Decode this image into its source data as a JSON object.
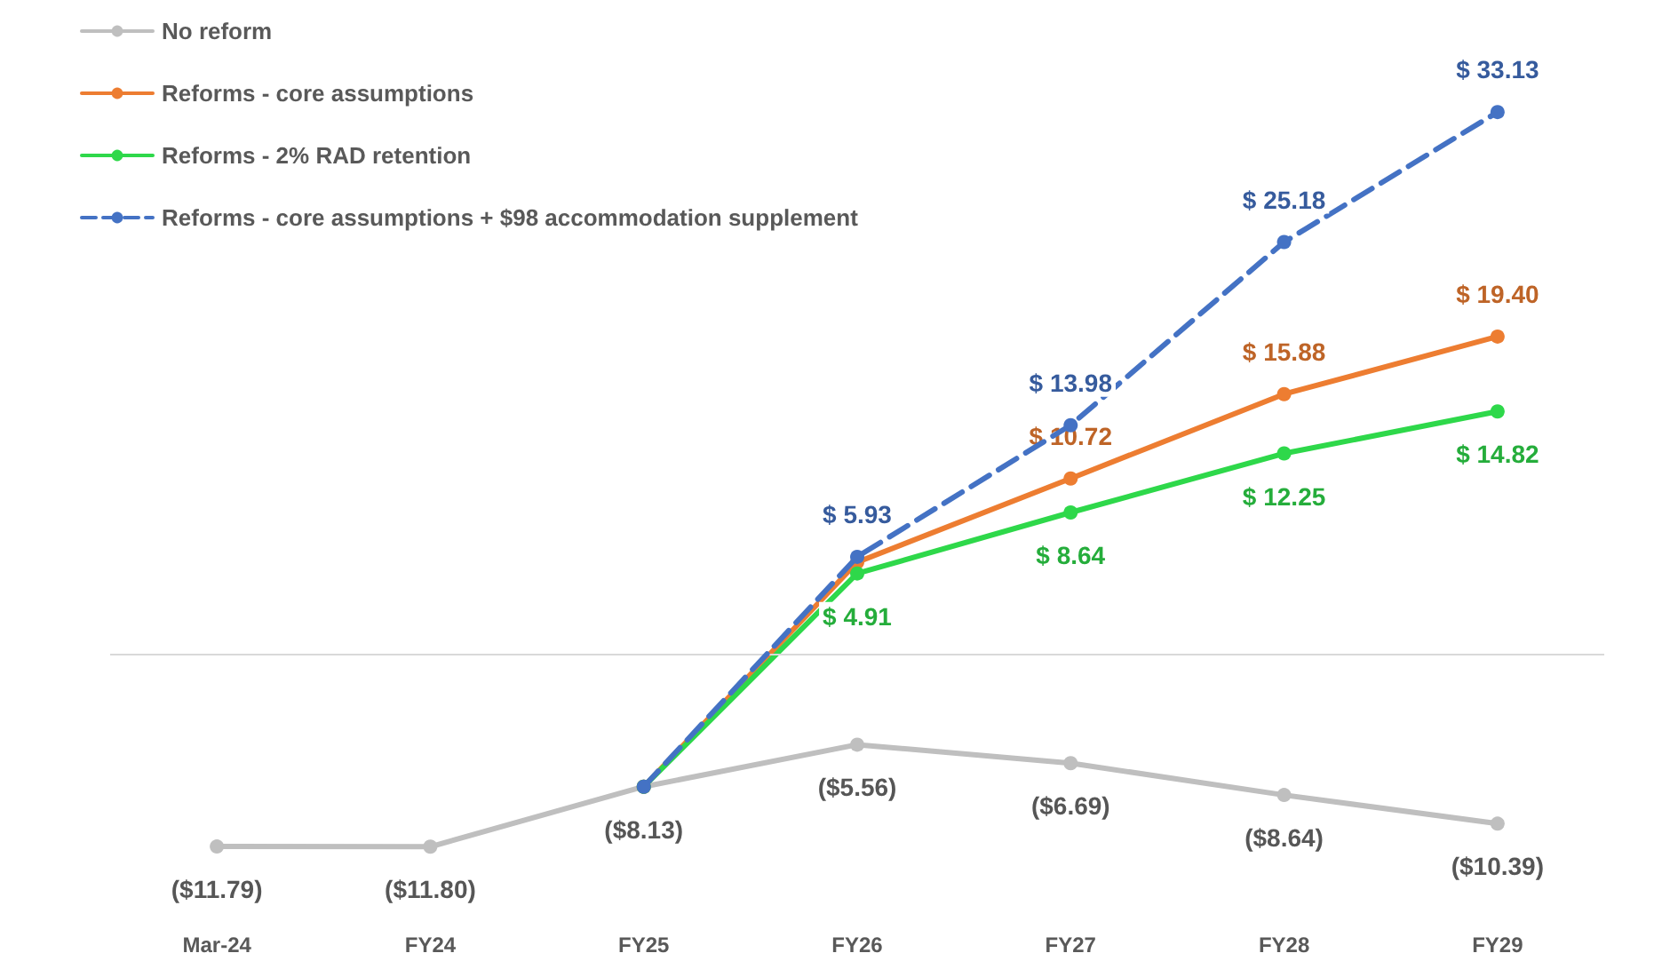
{
  "chart_data": {
    "type": "line",
    "categories": [
      "Mar-24",
      "FY24",
      "FY25",
      "FY26",
      "FY27",
      "FY28",
      "FY29"
    ],
    "series": [
      {
        "name": "No reform",
        "color": "#bfbfbf",
        "values": [
          -11.79,
          -11.8,
          -8.13,
          -5.56,
          -6.69,
          -8.64,
          -10.39
        ],
        "value_labels": [
          "($11.79)",
          "($11.80)",
          "($8.13)",
          "($5.56)",
          "($6.69)",
          "($8.64)",
          "($10.39)"
        ]
      },
      {
        "name": "Reforms - core assumptions",
        "color": "#ed7d31",
        "values": [
          null,
          null,
          -8.13,
          5.6,
          10.72,
          15.88,
          19.4
        ],
        "value_labels": [
          null,
          null,
          null,
          null,
          "$ 10.72",
          "$ 15.88",
          "$ 19.40"
        ]
      },
      {
        "name": "Reforms - 2% RAD retention",
        "color": "#2ed84a",
        "values": [
          null,
          null,
          -8.13,
          4.91,
          8.64,
          12.25,
          14.82
        ],
        "value_labels": [
          null,
          null,
          null,
          "$ 4.91",
          "$ 8.64",
          "$ 12.25",
          "$ 14.82"
        ]
      },
      {
        "name": "Reforms - core assumptions + $98 accommodation supplement",
        "color": "#4472c4",
        "line_style": "dashed",
        "values": [
          null,
          null,
          -8.13,
          5.93,
          13.98,
          25.18,
          33.13
        ],
        "value_labels": [
          null,
          null,
          null,
          "$ 5.93",
          "$ 13.98",
          "$ 25.18",
          "$ 33.13"
        ]
      }
    ],
    "tick_labels": "x",
    "grid": false,
    "legend": "top left",
    "marker": "circle",
    "line_style": "solid",
    "ref_lines": [
      {
        "axis": "y",
        "value": 0,
        "color": "#d9d9d9"
      }
    ]
  }
}
